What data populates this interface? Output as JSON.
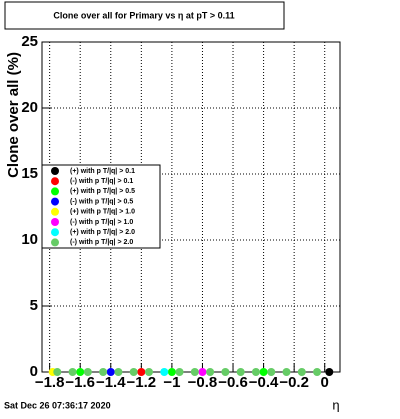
{
  "chart_data": {
    "type": "scatter",
    "title": "Clone  over all for Primary vs   η at pT > 0.11",
    "x_label": "η",
    "y_label": "Clone  over all (%)",
    "footer": "Sat Dec 26 07:36:17 2020",
    "xlim": [
      -1.85,
      0.1
    ],
    "ylim": [
      0,
      25
    ],
    "xticks": [
      {
        "value": -1.8,
        "label": "−1.8"
      },
      {
        "value": -1.6,
        "label": "−1.6"
      },
      {
        "value": -1.4,
        "label": "−1.4"
      },
      {
        "value": -1.2,
        "label": "−1.2"
      },
      {
        "value": -1,
        "label": "−1"
      },
      {
        "value": -0.8,
        "label": "−0.8"
      },
      {
        "value": -0.6,
        "label": "−0.6"
      },
      {
        "value": -0.4,
        "label": "−0.4"
      },
      {
        "value": -0.2,
        "label": "−0.2"
      },
      0
    ],
    "yticks": [
      0,
      5,
      10,
      15,
      20,
      25
    ],
    "grid": true,
    "series": [
      {
        "name": "(+) with p T/|q| > 0.1",
        "color": "#000000",
        "x": [
          0.03
        ],
        "values": [
          0
        ]
      },
      {
        "name": "(-) with p T/|q| > 0.1",
        "color": "#ff0000",
        "x": [
          -1.2
        ],
        "values": [
          0
        ]
      },
      {
        "name": "(+) with p T/|q| > 0.5",
        "color": "#00ff00",
        "x": [
          -1.6,
          -1.0,
          -0.4
        ],
        "values": [
          0,
          0,
          0
        ]
      },
      {
        "name": "(-) with p T/|q| > 0.5",
        "color": "#0000ff",
        "x": [
          -1.4
        ],
        "values": [
          0
        ]
      },
      {
        "name": "(+) with p T/|q| > 1.0",
        "color": "#ffff00",
        "x": [
          -1.78
        ],
        "values": [
          0
        ]
      },
      {
        "name": "(-) with p T/|q| > 1.0",
        "color": "#ff00ff",
        "x": [
          -0.8
        ],
        "values": [
          0
        ]
      },
      {
        "name": "(+) with p T/|q| > 2.0",
        "color": "#00ffff",
        "x": [
          -1.05
        ],
        "values": [
          0
        ]
      },
      {
        "name": "(-) with p T/|q| > 2.0",
        "color": "#66cc66",
        "x": [
          -1.75,
          -1.65,
          -1.55,
          -1.45,
          -1.35,
          -1.25,
          -1.15,
          -0.95,
          -0.85,
          -0.75,
          -0.65,
          -0.55,
          -0.45,
          -0.35,
          -0.25,
          -0.15,
          -0.05
        ],
        "values": [
          0,
          0,
          0,
          0,
          0,
          0,
          0,
          0,
          0,
          0,
          0,
          0,
          0,
          0,
          0,
          0,
          0
        ]
      }
    ]
  }
}
